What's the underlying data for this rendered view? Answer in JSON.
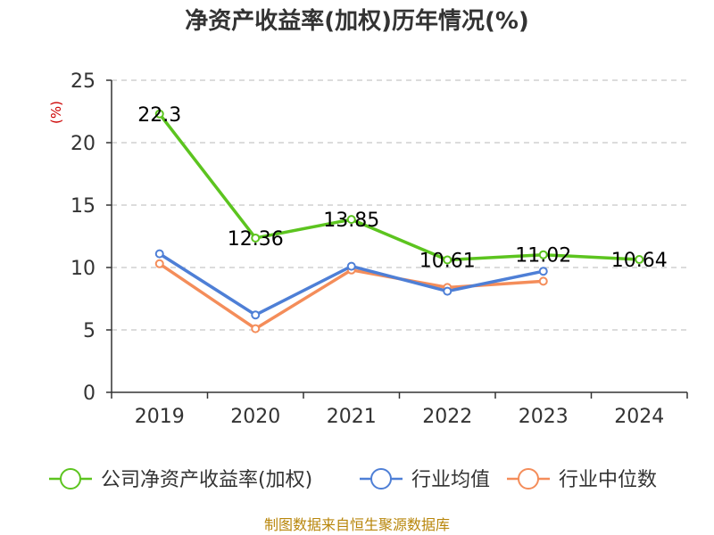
{
  "chart_data": {
    "type": "line",
    "title": "净资产收益率(加权)历年情况(%)",
    "ylabel": "(%)",
    "categories": [
      "2019",
      "2020",
      "2021",
      "2022",
      "2023",
      "2024"
    ],
    "ylim": [
      0,
      25
    ],
    "yticks": [
      0,
      5,
      10,
      15,
      20,
      25
    ],
    "grid": true,
    "legend_position": "bottom",
    "series": [
      {
        "name": "公司净资产收益率(加权)",
        "color": "#5cc41f",
        "values": [
          22.3,
          12.36,
          13.85,
          10.61,
          11.02,
          10.64
        ],
        "labels": [
          "22.3",
          "12.36",
          "13.85",
          "10.61",
          "11.02",
          "10.64"
        ]
      },
      {
        "name": "行业均值",
        "color": "#4e7fd6",
        "values": [
          11.1,
          6.2,
          10.1,
          8.1,
          9.7,
          null
        ]
      },
      {
        "name": "行业中位数",
        "color": "#f48d5a",
        "values": [
          10.3,
          5.1,
          9.8,
          8.4,
          8.9,
          null
        ]
      }
    ]
  },
  "source": "制图数据来自恒生聚源数据库"
}
